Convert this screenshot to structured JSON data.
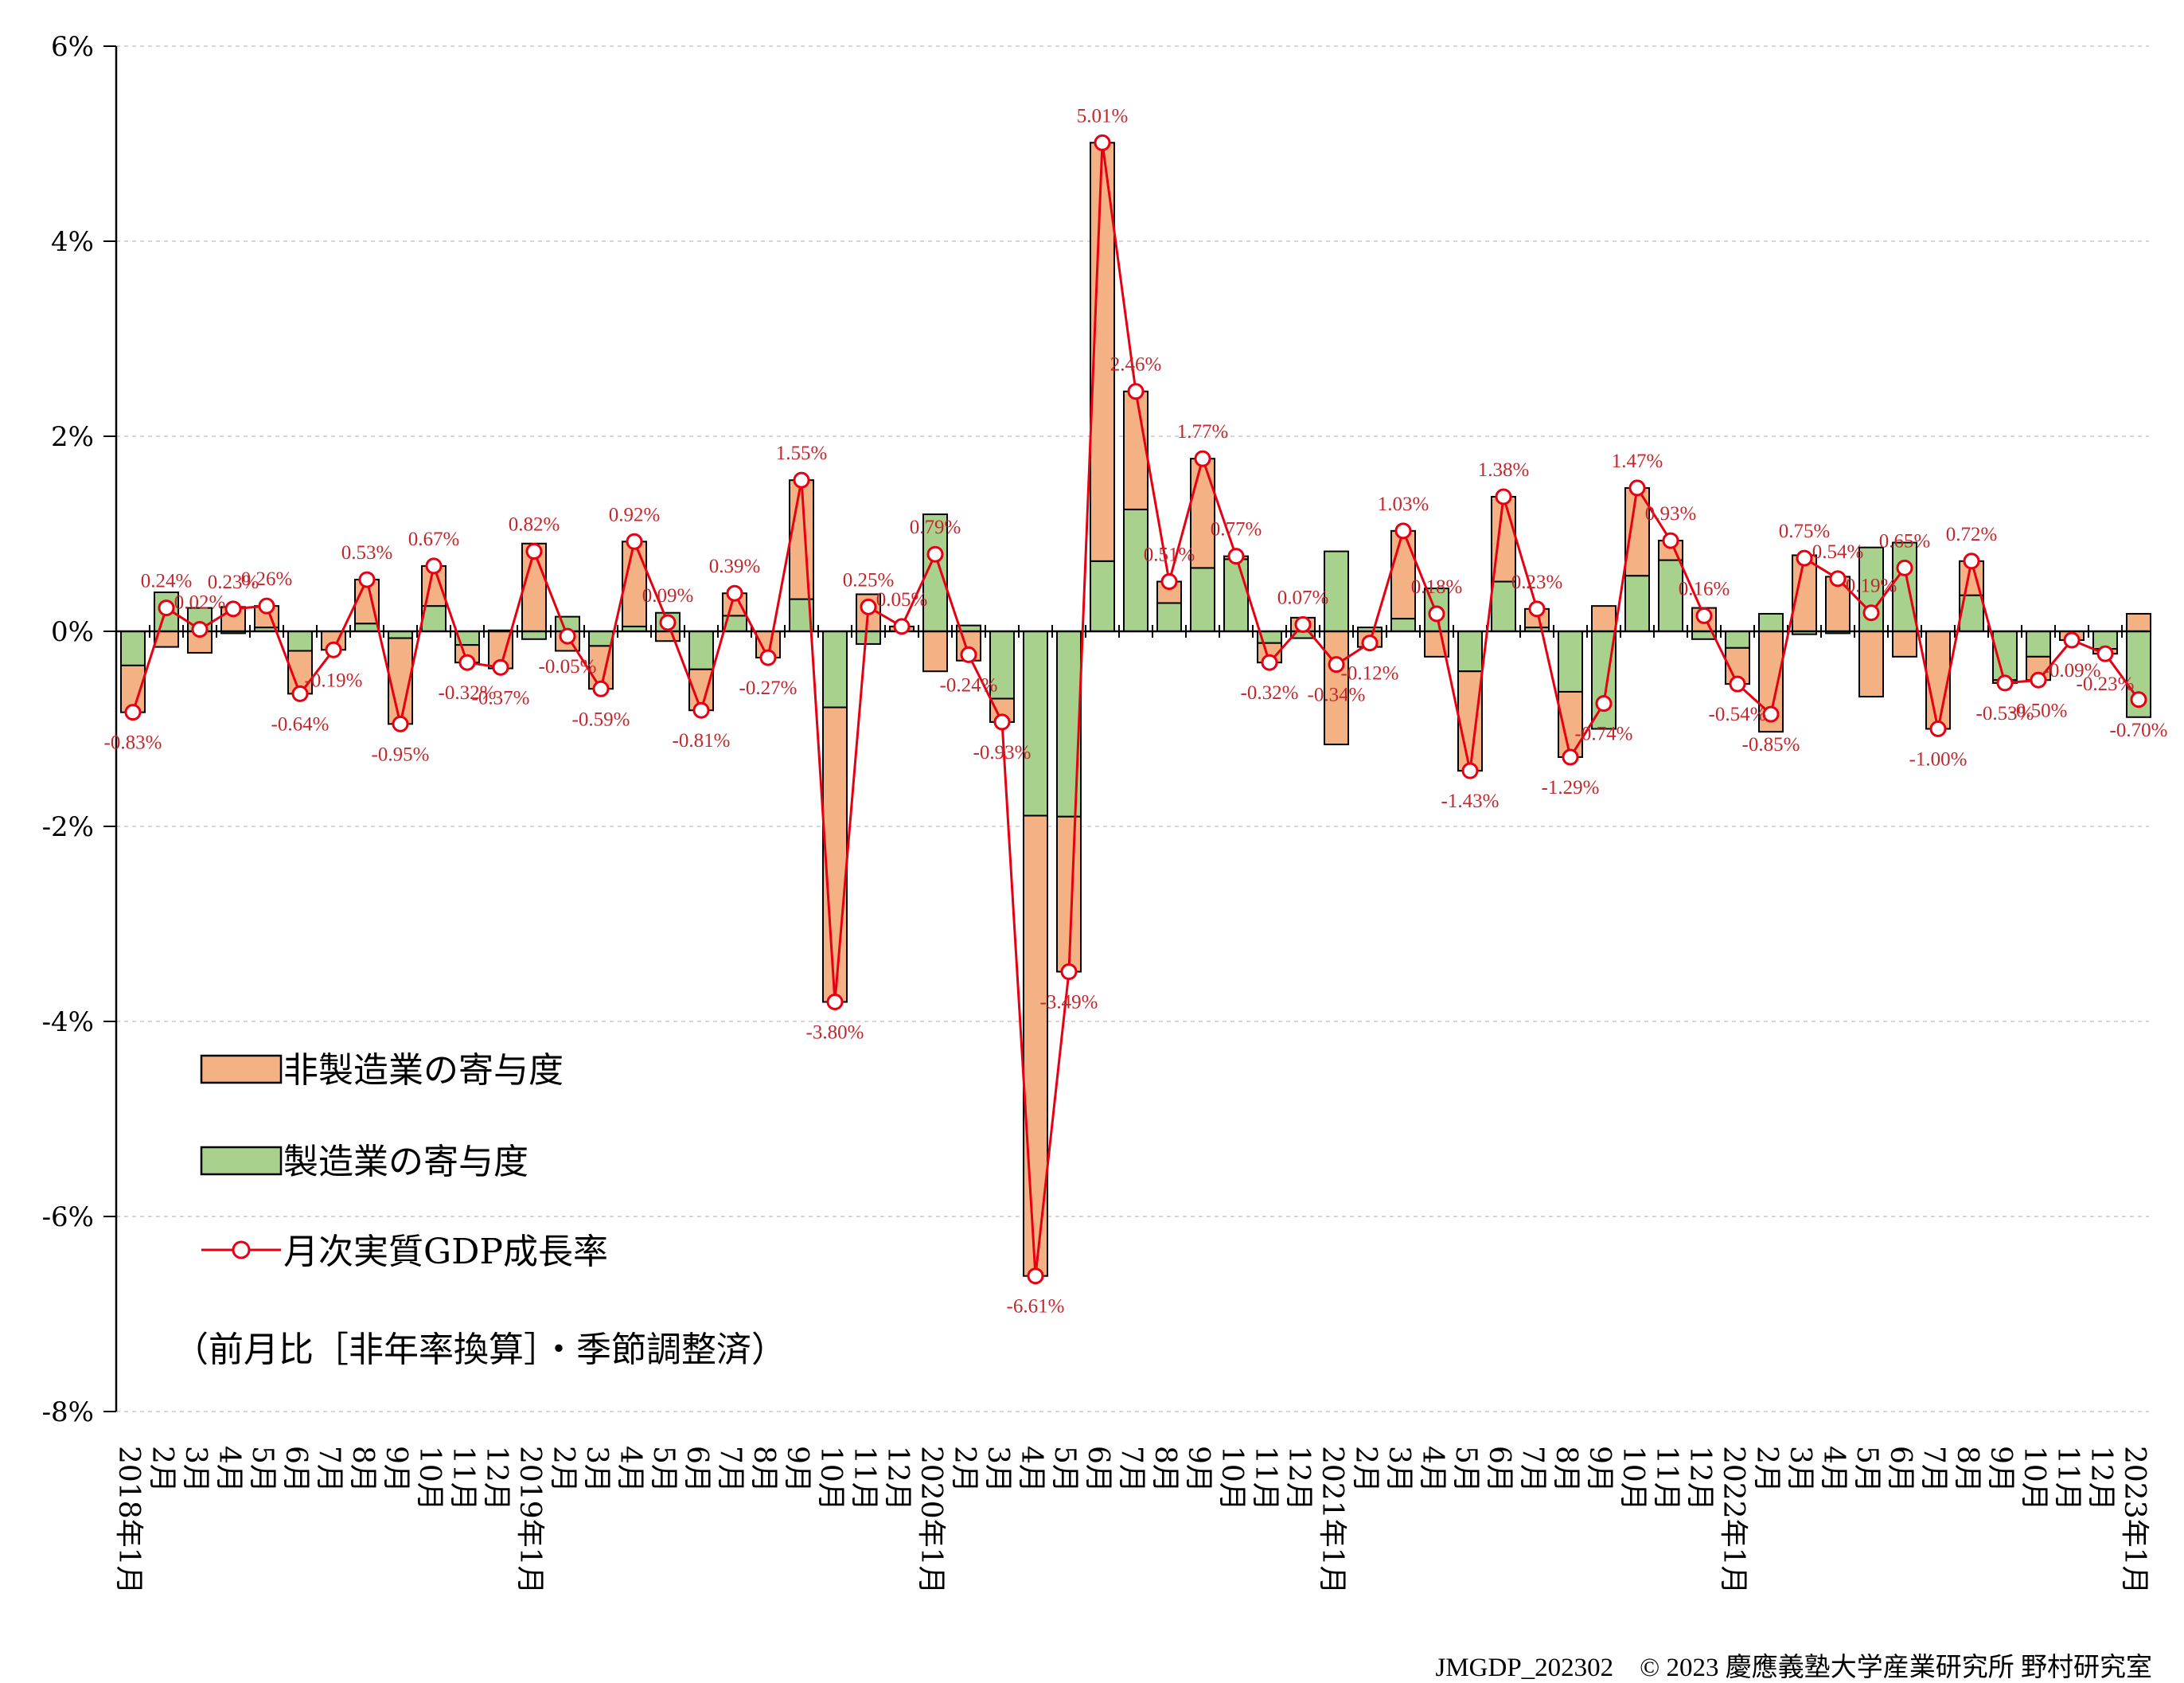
{
  "chart_data": {
    "type": "bar",
    "stacked": true,
    "y_axis": {
      "min": -8,
      "max": 6,
      "step": 2,
      "tick_labels": [
        "-8%",
        "-6%",
        "-4%",
        "-2%",
        "0%",
        "2%",
        "4%",
        "6%"
      ]
    },
    "grid": true,
    "legend_position": "bottom-left",
    "categories": [
      "2018年1月",
      "2月",
      "3月",
      "4月",
      "5月",
      "6月",
      "7月",
      "8月",
      "9月",
      "10月",
      "11月",
      "12月",
      "2019年1月",
      "2月",
      "3月",
      "4月",
      "5月",
      "6月",
      "7月",
      "8月",
      "9月",
      "10月",
      "11月",
      "12月",
      "2020年1月",
      "2月",
      "3月",
      "4月",
      "5月",
      "6月",
      "7月",
      "8月",
      "9月",
      "10月",
      "11月",
      "12月",
      "2021年1月",
      "2月",
      "3月",
      "4月",
      "5月",
      "6月",
      "7月",
      "8月",
      "9月",
      "10月",
      "11月",
      "12月",
      "2022年1月",
      "2月",
      "3月",
      "4月",
      "5月",
      "6月",
      "7月",
      "8月",
      "9月",
      "10月",
      "11月",
      "12月",
      "2023年1月"
    ],
    "series": [
      {
        "name": "非製造業の寄与度",
        "kind": "bar",
        "color": "#f4b183",
        "values": [
          -0.48,
          -0.16,
          -0.22,
          0.25,
          0.22,
          -0.44,
          -0.19,
          0.45,
          -0.88,
          0.41,
          -0.18,
          -0.38,
          0.9,
          -0.2,
          -0.44,
          0.87,
          -0.1,
          -0.42,
          0.23,
          -0.27,
          1.22,
          -3.02,
          0.38,
          0.05,
          -0.41,
          -0.3,
          -0.24,
          -4.72,
          -1.59,
          4.29,
          1.21,
          0.22,
          1.12,
          0.03,
          -0.2,
          0.14,
          -1.16,
          -0.16,
          0.9,
          -0.26,
          -1.02,
          0.87,
          0.19,
          -0.67,
          0.26,
          0.9,
          0.2,
          0.24,
          -0.37,
          -1.03,
          0.78,
          0.56,
          -0.67,
          -0.26,
          -1.0,
          0.35,
          -0.03,
          -0.24,
          -0.09,
          -0.05,
          0.18
        ]
      },
      {
        "name": "製造業の寄与度",
        "kind": "bar",
        "color": "#a9d18e",
        "values": [
          -0.35,
          0.4,
          0.24,
          -0.02,
          0.04,
          -0.2,
          0.0,
          0.08,
          -0.07,
          0.26,
          -0.14,
          0.01,
          -0.08,
          0.15,
          -0.15,
          0.05,
          0.19,
          -0.39,
          0.16,
          0.0,
          0.33,
          -0.78,
          -0.13,
          0.0,
          1.2,
          0.06,
          -0.69,
          -1.89,
          -1.9,
          0.72,
          1.25,
          0.29,
          0.65,
          0.74,
          -0.12,
          -0.07,
          0.82,
          0.04,
          0.13,
          0.44,
          -0.41,
          0.51,
          0.04,
          -0.62,
          -1.0,
          0.57,
          0.73,
          -0.08,
          -0.17,
          0.18,
          -0.03,
          -0.02,
          0.86,
          0.91,
          0.0,
          0.37,
          -0.5,
          -0.26,
          0.0,
          -0.18,
          -0.88
        ]
      },
      {
        "name": "月次実質GDP成長率",
        "kind": "line",
        "color": "#e60012",
        "values": [
          -0.83,
          0.24,
          0.02,
          0.23,
          0.26,
          -0.64,
          -0.19,
          0.53,
          -0.95,
          0.67,
          -0.32,
          -0.37,
          0.82,
          -0.05,
          -0.59,
          0.92,
          0.09,
          -0.81,
          0.39,
          -0.27,
          1.55,
          -3.8,
          0.25,
          0.05,
          0.79,
          -0.24,
          -0.93,
          -6.61,
          -3.49,
          5.01,
          2.46,
          0.51,
          1.77,
          0.77,
          -0.32,
          0.07,
          -0.34,
          -0.12,
          1.03,
          0.18,
          -1.43,
          1.38,
          0.23,
          -1.29,
          -0.74,
          1.47,
          0.93,
          0.16,
          -0.54,
          -0.85,
          0.75,
          0.54,
          0.19,
          0.65,
          -1.0,
          0.72,
          -0.53,
          -0.5,
          -0.09,
          -0.23,
          -0.7
        ]
      }
    ],
    "data_labels": [
      "-0.83%",
      "0.24%",
      "0.02%",
      "0.23%",
      "0.26%",
      "-0.64%",
      "-0.19%",
      "0.53%",
      "-0.95%",
      "0.67%",
      "-0.32%",
      "-0.37%",
      "0.82%",
      "-0.05%",
      "-0.59%",
      "0.92%",
      "0.09%",
      "-0.81%",
      "0.39%",
      "-0.27%",
      "1.55%",
      "-3.80%",
      "0.25%",
      "0.05%",
      "0.79%",
      "-0.24%",
      "-0.93%",
      "-6.61%",
      "-3.49%",
      "5.01%",
      "2.46%",
      "0.51%",
      "1.77%",
      "0.77%",
      "-0.32%",
      "0.07%",
      "-0.34%",
      "-0.12%",
      "1.03%",
      "0.18%",
      "-1.43%",
      "1.38%",
      "0.23%",
      "-1.29%",
      "-0.74%",
      "1.47%",
      "0.93%",
      "0.16%",
      "-0.54%",
      "-0.85%",
      "0.75%",
      "0.54%",
      "0.19%",
      "0.65%",
      "-1.00%",
      "0.72%",
      "-0.53%",
      "-0.50%",
      "-0.09%",
      "-0.23%",
      "-0.70%"
    ]
  },
  "legend": {
    "non_manufacturing": "非製造業の寄与度",
    "manufacturing": "製造業の寄与度",
    "gdp_growth": "月次実質GDP成長率"
  },
  "note": "（前月比［非年率換算］・季節調整済）",
  "footer": "JMGDP_202302　© 2023 慶應義塾大学産業研究所 野村研究室"
}
